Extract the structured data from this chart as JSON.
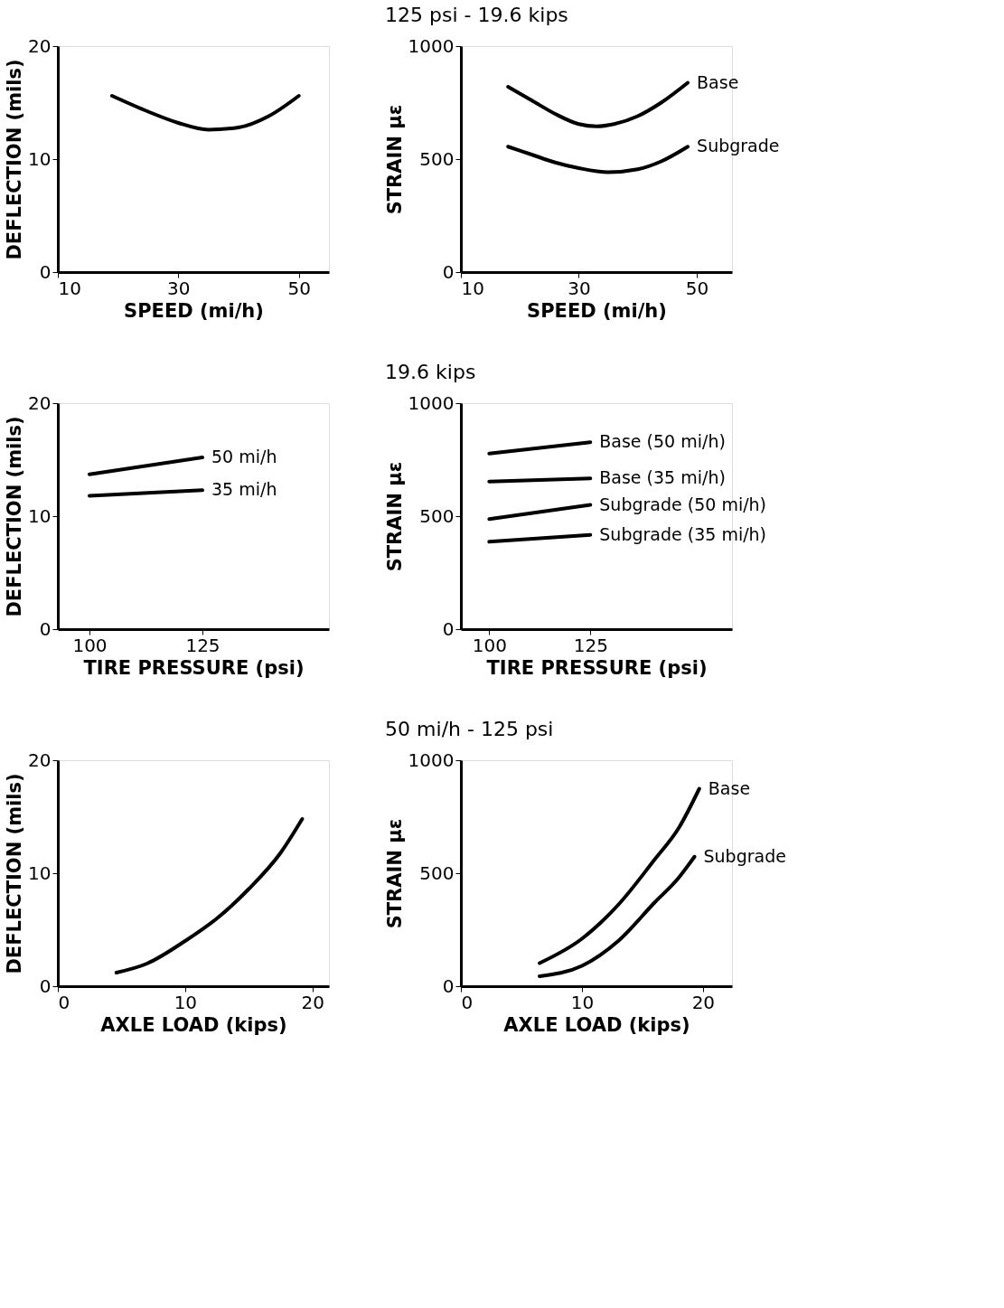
{
  "chart_data": [
    {
      "type": "line",
      "xlabel": "SPEED (mi/h)",
      "ylabel": "DEFLECTION (mils)",
      "xlim": [
        10,
        55
      ],
      "ylim": [
        0,
        20
      ],
      "xticks": [
        10,
        30,
        50
      ],
      "yticks": [
        0,
        10,
        20
      ],
      "grid": false,
      "series": [
        {
          "color": "#000000",
          "x": [
            19,
            25,
            30,
            35,
            40,
            45,
            50
          ],
          "values": [
            15.6,
            14.2,
            13.2,
            12.6,
            12.8,
            13.8,
            15.6
          ]
        }
      ]
    },
    {
      "type": "line",
      "title": "125 psi - 19.6 kips",
      "xlabel": "SPEED (mi/h)",
      "ylabel": "STRAIN με",
      "xlim": [
        10,
        56
      ],
      "ylim": [
        0,
        1000
      ],
      "xticks": [
        10,
        30,
        50
      ],
      "yticks": [
        0,
        500,
        1000
      ],
      "grid": false,
      "series": [
        {
          "name": "Base",
          "color": "#000000",
          "x": [
            18,
            22,
            26,
            30,
            33,
            36,
            40,
            44,
            48.5
          ],
          "values": [
            820,
            760,
            700,
            655,
            645,
            655,
            690,
            750,
            838
          ]
        },
        {
          "name": "Subgrade",
          "color": "#000000",
          "x": [
            18,
            22,
            26,
            30,
            35,
            40,
            44,
            48.5
          ],
          "values": [
            555,
            520,
            485,
            460,
            442,
            455,
            490,
            555
          ]
        }
      ]
    },
    {
      "type": "line",
      "xlabel": "TIRE PRESSURE (psi)",
      "ylabel": "DEFLECTION (mils)",
      "xlim": [
        93,
        153
      ],
      "ylim": [
        0,
        20
      ],
      "xticks": [
        100,
        125
      ],
      "yticks": [
        0,
        10,
        20
      ],
      "grid": false,
      "series": [
        {
          "name": "50 mi/h",
          "color": "#000000",
          "x": [
            100,
            125
          ],
          "values": [
            13.7,
            15.2
          ]
        },
        {
          "name": "35 mi/h",
          "color": "#000000",
          "x": [
            100,
            125
          ],
          "values": [
            11.8,
            12.3
          ]
        }
      ]
    },
    {
      "type": "line",
      "title": "19.6 kips",
      "xlabel": "TIRE PRESSURE (psi)",
      "ylabel": "STRAIN με",
      "xlim": [
        93,
        160
      ],
      "ylim": [
        0,
        1000
      ],
      "xticks": [
        100,
        125
      ],
      "yticks": [
        0,
        500,
        1000
      ],
      "grid": false,
      "series": [
        {
          "name": "Base (50 mi/h)",
          "color": "#000000",
          "x": [
            100,
            125
          ],
          "values": [
            777,
            827
          ]
        },
        {
          "name": "Base (35 mi/h)",
          "color": "#000000",
          "x": [
            100,
            125
          ],
          "values": [
            653,
            667
          ]
        },
        {
          "name": "Subgrade (50 mi/h)",
          "color": "#000000",
          "x": [
            100,
            125
          ],
          "values": [
            487,
            550
          ]
        },
        {
          "name": "Subgrade (35 mi/h)",
          "color": "#000000",
          "x": [
            100,
            125
          ],
          "values": [
            387,
            417
          ]
        }
      ]
    },
    {
      "type": "line",
      "xlabel": "AXLE LOAD (kips)",
      "ylabel": "DEFLECTION (mils)",
      "xlim": [
        0,
        21.3
      ],
      "ylim": [
        0,
        20
      ],
      "xticks": [
        0,
        10,
        20
      ],
      "yticks": [
        0,
        10,
        20
      ],
      "grid": false,
      "series": [
        {
          "color": "#000000",
          "x": [
            4.6,
            7,
            10,
            12.5,
            15,
            17.5,
            19.2
          ],
          "values": [
            1.2,
            2.0,
            4.0,
            6.0,
            8.6,
            11.8,
            14.8
          ]
        }
      ]
    },
    {
      "type": "line",
      "title": "50 mi/h - 125 psi",
      "xlabel": "AXLE LOAD (kips)",
      "ylabel": "STRAIN με",
      "xlim": [
        0,
        22.4
      ],
      "ylim": [
        0,
        1000
      ],
      "xticks": [
        0,
        10,
        20
      ],
      "yticks": [
        0,
        500,
        1000
      ],
      "grid": false,
      "series": [
        {
          "name": "Base",
          "color": "#000000",
          "x": [
            6.5,
            10,
            13,
            16,
            18,
            19.7
          ],
          "values": [
            102,
            210,
            360,
            560,
            700,
            874
          ]
        },
        {
          "name": "Subgrade",
          "color": "#000000",
          "x": [
            6.5,
            10,
            13,
            16,
            18,
            19.3
          ],
          "values": [
            44,
            90,
            200,
            370,
            480,
            573
          ]
        }
      ]
    }
  ]
}
